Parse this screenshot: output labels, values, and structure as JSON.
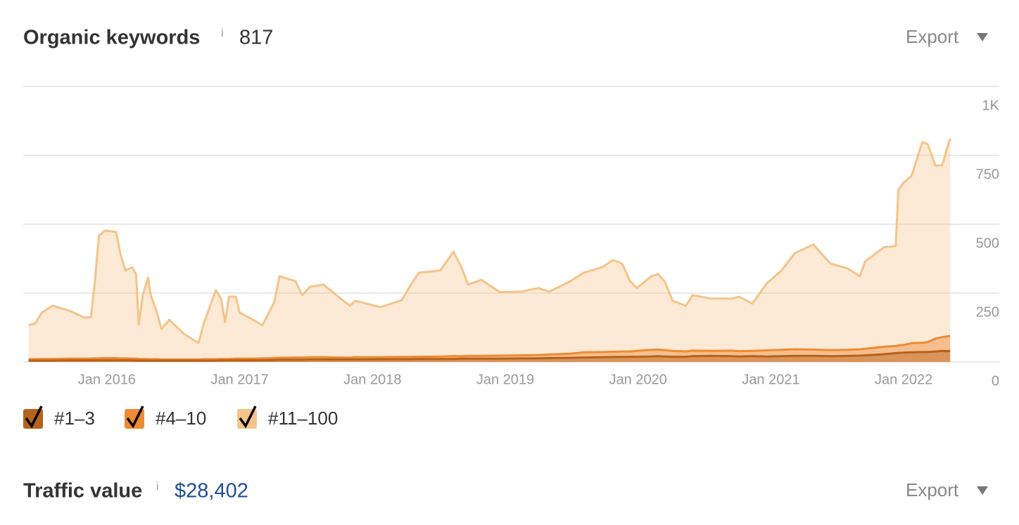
{
  "header": {
    "title": "Organic keywords",
    "info": "i",
    "value": 817,
    "export": "Export"
  },
  "chart_data": {
    "type": "area",
    "x": [
      2015.41,
      2015.46,
      2015.51,
      2015.59,
      2015.72,
      2015.83,
      2015.88,
      2015.91,
      2015.94,
      2015.99,
      2016.07,
      2016.1,
      2016.14,
      2016.19,
      2016.22,
      2016.24,
      2016.27,
      2016.31,
      2016.33,
      2016.37,
      2016.41,
      2016.47,
      2016.58,
      2016.69,
      2016.73,
      2016.82,
      2016.86,
      2016.89,
      2016.92,
      2016.97,
      2017.0,
      2017.1,
      2017.17,
      2017.26,
      2017.3,
      2017.42,
      2017.47,
      2017.53,
      2017.63,
      2017.76,
      2017.83,
      2017.87,
      2018.06,
      2018.22,
      2018.29,
      2018.35,
      2018.51,
      2018.61,
      2018.67,
      2018.72,
      2018.82,
      2018.96,
      2019.12,
      2019.25,
      2019.33,
      2019.49,
      2019.59,
      2019.73,
      2019.81,
      2019.88,
      2019.94,
      2019.99,
      2020.1,
      2020.15,
      2020.2,
      2020.26,
      2020.36,
      2020.41,
      2020.55,
      2020.71,
      2020.76,
      2020.86,
      2020.97,
      2021.08,
      2021.18,
      2021.32,
      2021.45,
      2021.58,
      2021.67,
      2021.71,
      2021.85,
      2021.94,
      2021.96,
      2022.0,
      2022.06,
      2022.14,
      2022.18,
      2022.24,
      2022.29,
      2022.32,
      2022.35
    ],
    "series": [
      {
        "name": "#11–100",
        "color": "#f5c489",
        "values": [
          133,
          140,
          179,
          204,
          186,
          161,
          163,
          293,
          459,
          477,
          472,
          395,
          332,
          344,
          319,
          135,
          242,
          306,
          242,
          191,
          120,
          153,
          102,
          69,
          140,
          260,
          230,
          145,
          237,
          237,
          179,
          153,
          133,
          217,
          311,
          293,
          242,
          273,
          281,
          230,
          204,
          222,
          199,
          224,
          281,
          324,
          332,
          400,
          344,
          281,
          298,
          253,
          255,
          268,
          255,
          293,
          324,
          344,
          370,
          357,
          293,
          268,
          311,
          319,
          293,
          222,
          204,
          242,
          230,
          230,
          237,
          212,
          286,
          332,
          395,
          426,
          357,
          339,
          311,
          365,
          416,
          421,
          625,
          651,
          676,
          798,
          791,
          712,
          714,
          765,
          811
        ]
      },
      {
        "name": "#4–10",
        "color": "#ef8a33",
        "values": [
          10,
          10,
          11,
          11,
          12,
          12,
          12,
          13,
          13,
          14,
          14,
          13,
          13,
          12,
          12,
          11,
          11,
          10,
          10,
          10,
          9,
          9,
          9,
          9,
          10,
          10,
          11,
          11,
          11,
          12,
          12,
          12,
          13,
          14,
          15,
          16,
          16,
          17,
          17,
          16,
          16,
          17,
          17,
          18,
          18,
          19,
          20,
          21,
          21,
          22,
          22,
          23,
          24,
          25,
          27,
          30,
          35,
          36,
          37,
          38,
          38,
          40,
          44,
          45,
          43,
          40,
          38,
          41,
          40,
          41,
          39,
          40,
          42,
          44,
          46,
          45,
          43,
          44,
          46,
          48,
          55,
          58,
          60,
          62,
          68,
          70,
          72,
          85,
          90,
          92,
          95
        ]
      },
      {
        "name": "#1–3",
        "color": "#b5621d",
        "values": [
          5,
          5,
          5,
          5,
          6,
          6,
          6,
          6,
          6,
          6,
          6,
          6,
          6,
          6,
          5,
          5,
          5,
          5,
          5,
          5,
          5,
          5,
          5,
          5,
          5,
          5,
          6,
          6,
          6,
          6,
          6,
          6,
          6,
          7,
          8,
          8,
          8,
          9,
          9,
          9,
          9,
          9,
          10,
          10,
          10,
          11,
          11,
          11,
          12,
          12,
          12,
          12,
          13,
          13,
          14,
          15,
          16,
          17,
          18,
          18,
          19,
          19,
          20,
          21,
          20,
          19,
          19,
          21,
          22,
          21,
          20,
          21,
          20,
          21,
          22,
          22,
          21,
          22,
          23,
          24,
          28,
          32,
          33,
          34,
          35,
          36,
          36,
          38,
          40,
          39,
          40
        ]
      }
    ],
    "xlim": [
      2015.37,
      2022.72
    ],
    "xticks": [
      {
        "value": 2016,
        "label": "Jan 2016"
      },
      {
        "value": 2017,
        "label": "Jan 2017"
      },
      {
        "value": 2018,
        "label": "Jan 2018"
      },
      {
        "value": 2019,
        "label": "Jan 2019"
      },
      {
        "value": 2020,
        "label": "Jan 2020"
      },
      {
        "value": 2021,
        "label": "Jan 2021"
      },
      {
        "value": 2022,
        "label": "Jan 2022"
      }
    ],
    "ylim": [
      0,
      1000
    ],
    "yticks": [
      0,
      250,
      500,
      750,
      {
        "value": 1000,
        "label": "1K"
      }
    ],
    "grid": true,
    "legend_order": [
      2,
      1,
      0
    ]
  },
  "traffic": {
    "title": "Traffic value",
    "info": "i",
    "value": "$28,402",
    "export": "Export"
  }
}
